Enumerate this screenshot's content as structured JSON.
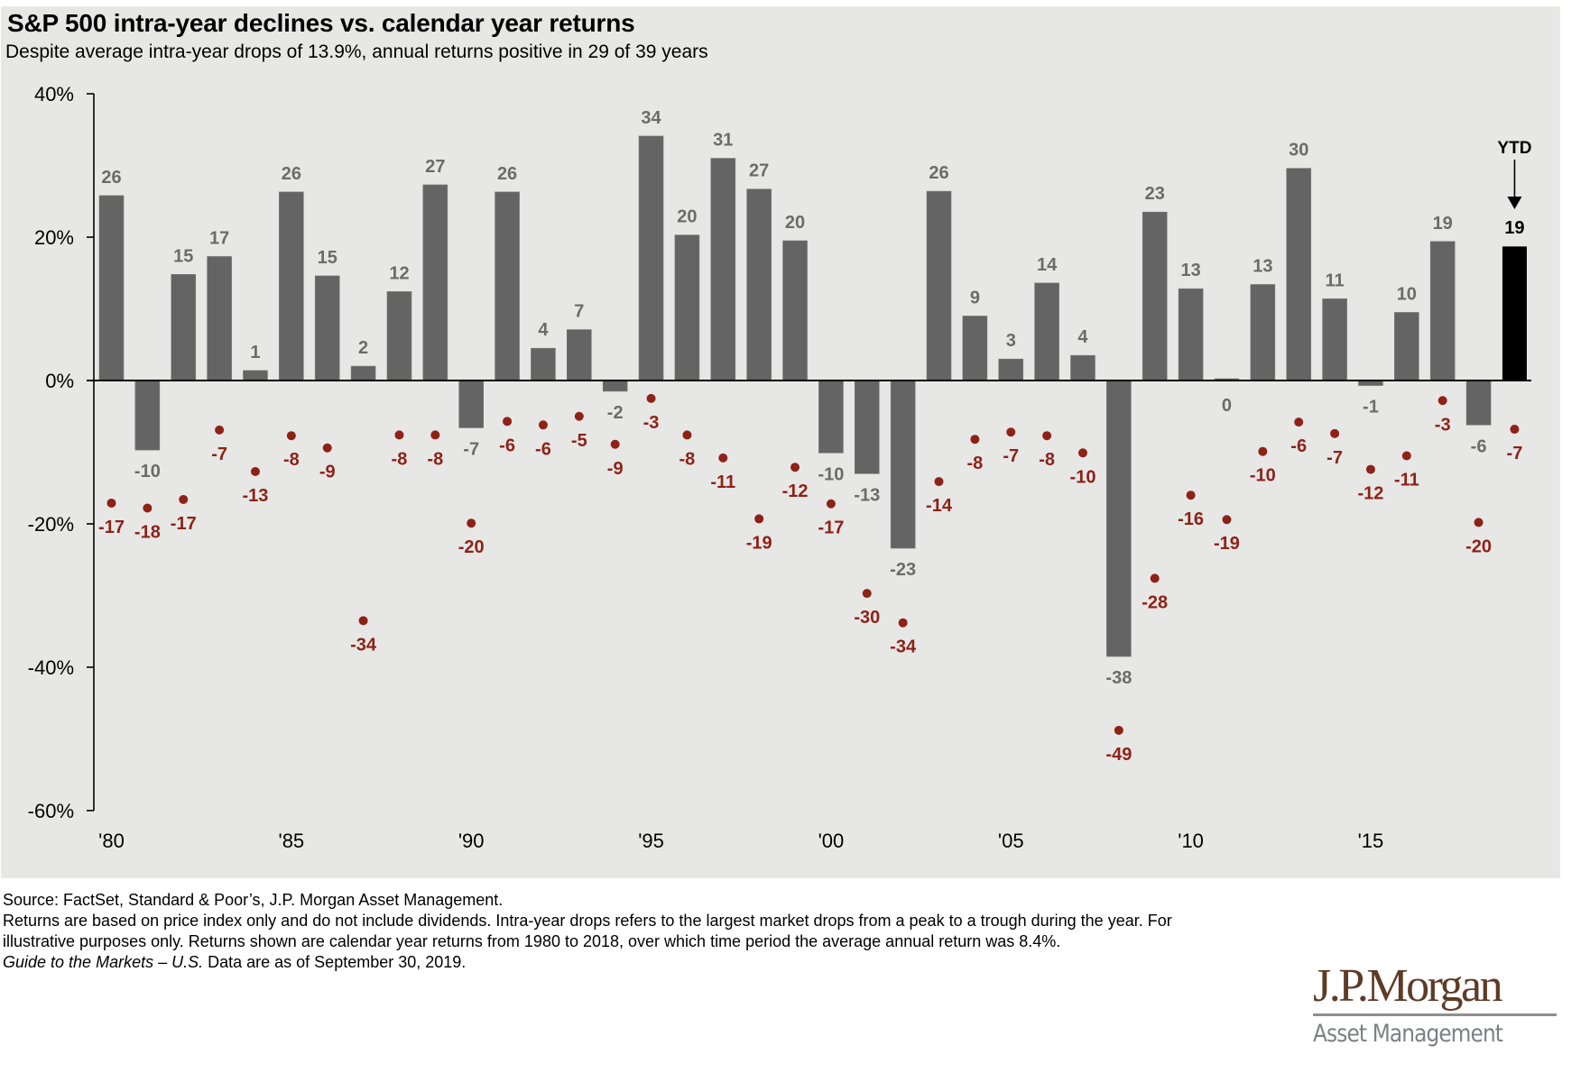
{
  "header": {
    "title": "S&P 500 intra-year declines vs. calendar year returns",
    "subtitle": "Despite average intra-year drops of 13.9%, annual returns positive in 29 of 39 years"
  },
  "chart_data": {
    "type": "bar",
    "title": "S&P 500 intra-year declines vs. calendar year returns",
    "subtitle": "Despite average intra-year drops of 13.9%, annual returns positive in 29 of 39 years",
    "xlabel": "",
    "ylabel": "",
    "ylim": [
      -60,
      40
    ],
    "yticks": [
      40,
      20,
      0,
      -20,
      -40,
      -60
    ],
    "ytick_labels": [
      "40%",
      "20%",
      "0%",
      "-20%",
      "-40%",
      "-60%"
    ],
    "grid": false,
    "x": [
      1980,
      1981,
      1982,
      1983,
      1984,
      1985,
      1986,
      1987,
      1988,
      1989,
      1990,
      1991,
      1992,
      1993,
      1994,
      1995,
      1996,
      1997,
      1998,
      1999,
      2000,
      2001,
      2002,
      2003,
      2004,
      2005,
      2006,
      2007,
      2008,
      2009,
      2010,
      2011,
      2012,
      2013,
      2014,
      2015,
      2016,
      2017,
      2018,
      2019
    ],
    "xtick_years": [
      1980,
      1985,
      1990,
      1995,
      2000,
      2005,
      2010,
      2015
    ],
    "xtick_labels": [
      "'80",
      "'85",
      "'90",
      "'95",
      "'00",
      "'05",
      "'10",
      "'15"
    ],
    "series": [
      {
        "name": "Calendar year return",
        "kind": "bar",
        "color": "#646464",
        "highlight_color": "#000000",
        "values": [
          25.8,
          -9.7,
          14.8,
          17.3,
          1.4,
          26.3,
          14.6,
          2.0,
          12.4,
          27.3,
          -6.6,
          26.3,
          4.5,
          7.1,
          -1.5,
          34.1,
          20.3,
          31.0,
          26.7,
          19.5,
          -10.1,
          -13.0,
          -23.4,
          26.4,
          9.0,
          3.0,
          13.6,
          3.5,
          -38.5,
          23.5,
          12.8,
          0.0,
          13.4,
          29.6,
          11.4,
          -0.7,
          9.5,
          19.4,
          -6.2,
          18.7
        ],
        "labels": [
          "26",
          "-10",
          "15",
          "17",
          "1",
          "26",
          "15",
          "2",
          "12",
          "27",
          "-7",
          "26",
          "4",
          "7",
          "-2",
          "34",
          "20",
          "31",
          "27",
          "20",
          "-10",
          "-13",
          "-23",
          "26",
          "9",
          "3",
          "14",
          "4",
          "-38",
          "23",
          "13",
          "0",
          "13",
          "30",
          "11",
          "-1",
          "10",
          "19",
          "-6",
          "19"
        ]
      },
      {
        "name": "Intra-year decline",
        "kind": "scatter",
        "color": "#8e2217",
        "values": [
          -17.1,
          -17.8,
          -16.6,
          -6.9,
          -12.7,
          -7.7,
          -9.4,
          -33.5,
          -7.6,
          -7.6,
          -19.9,
          -5.7,
          -6.2,
          -5.0,
          -8.9,
          -2.5,
          -7.6,
          -10.8,
          -19.3,
          -12.1,
          -17.2,
          -29.7,
          -33.8,
          -14.1,
          -8.2,
          -7.2,
          -7.7,
          -10.1,
          -48.8,
          -27.6,
          -16.0,
          -19.4,
          -9.9,
          -5.8,
          -7.4,
          -12.4,
          -10.5,
          -2.8,
          -19.8,
          -6.8
        ],
        "labels": [
          "-17",
          "-18",
          "-17",
          "-7",
          "-13",
          "-8",
          "-9",
          "-34",
          "-8",
          "-8",
          "-20",
          "-6",
          "-6",
          "-5",
          "-9",
          "-3",
          "-8",
          "-11",
          "-19",
          "-12",
          "-17",
          "-30",
          "-34",
          "-14",
          "-8",
          "-7",
          "-8",
          "-10",
          "-49",
          "-28",
          "-16",
          "-19",
          "-10",
          "-6",
          "-7",
          "-12",
          "-11",
          "-3",
          "-20",
          "-7"
        ]
      }
    ],
    "annotations": [
      {
        "year": 2019,
        "text": "YTD",
        "value_label": "19",
        "arrow": "down"
      }
    ]
  },
  "footnotes": {
    "source": "Source: FactSet, Standard & Poor’s, J.P. Morgan Asset Management.",
    "note": "Returns are based on price index only and do not include dividends. Intra-year drops refers to the largest market drops from a peak to a trough during the year. For illustrative purposes only. Returns shown are calendar year returns from 1980 to 2018, over which time period the average annual return was 8.4%.",
    "guide_italic": "Guide to the Markets – U.S.",
    "as_of": " Data are as of September 30, 2019."
  },
  "logo": {
    "name": "J.P.Morgan",
    "subtitle": "Asset Management",
    "name_color": "#5e3b26",
    "subtitle_color": "#7d8083"
  }
}
